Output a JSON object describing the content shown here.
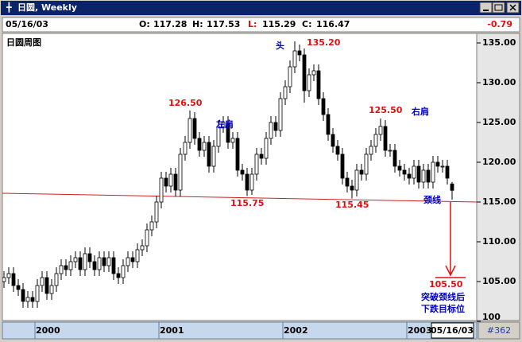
{
  "window": {
    "title": "日圆, Weekly",
    "status": "#362"
  },
  "info": {
    "date": "05/16/03",
    "fields": [
      {
        "label": "O:",
        "value": 117.28
      },
      {
        "label": "H:",
        "value": 117.53
      },
      {
        "label": "L:",
        "value": 115.29
      },
      {
        "label": "C:",
        "value": 116.47
      }
    ],
    "change": -0.79
  },
  "chart_data": {
    "type": "candlestick",
    "title": "日圆周图",
    "cursor_date": "05/16/03",
    "categories": [
      null,
      null,
      null,
      null,
      null,
      null,
      null,
      "2000",
      null,
      null,
      null,
      null,
      null,
      null,
      null,
      null,
      null,
      null,
      null,
      null,
      null,
      null,
      null,
      null,
      null,
      null,
      null,
      null,
      null,
      null,
      null,
      null,
      null,
      "2001",
      null,
      null,
      null,
      null,
      null,
      null,
      null,
      null,
      null,
      null,
      null,
      null,
      null,
      null,
      null,
      null,
      null,
      null,
      null,
      null,
      null,
      null,
      null,
      null,
      null,
      "2002",
      null,
      null,
      null,
      null,
      null,
      null,
      null,
      null,
      null,
      null,
      null,
      null,
      null,
      null,
      null,
      null,
      null,
      null,
      null,
      null,
      null,
      null,
      null,
      null,
      null,
      "2003",
      null,
      null,
      null,
      null,
      null,
      null,
      null,
      null,
      null
    ],
    "open": [
      105,
      105.5,
      106,
      104.5,
      104,
      102.5,
      103,
      102.5,
      104.5,
      105.5,
      103.5,
      104.5,
      106,
      107,
      106.5,
      107.5,
      108,
      106.5,
      108.5,
      107.5,
      106.5,
      108,
      107,
      108,
      106,
      105.5,
      107,
      108,
      107.5,
      109,
      109.5,
      111.5,
      112.5,
      115,
      118,
      117,
      118.5,
      116.5,
      121,
      122.5,
      125.5,
      123,
      121.5,
      122.5,
      119.5,
      122,
      124.5,
      125,
      122.5,
      123,
      119,
      118.5,
      116.5,
      118.5,
      121,
      120.5,
      123,
      125,
      124,
      128,
      129.5,
      132,
      134,
      133.5,
      129,
      131,
      131.5,
      128,
      126,
      123.5,
      122,
      121,
      118,
      117,
      116.5,
      119,
      118.5,
      121,
      122,
      123.5,
      124.5,
      121.5,
      121.5,
      119.5,
      119,
      118.5,
      118,
      119.5,
      117.5,
      119,
      117.5,
      120,
      119.5,
      119.5,
      117.28
    ],
    "high": [
      106.3,
      106.8,
      106.8,
      105.3,
      104.8,
      103.8,
      103.8,
      105.3,
      106.3,
      106.3,
      105.3,
      106.8,
      107.8,
      107.8,
      108.3,
      108.8,
      108.8,
      109.3,
      109.3,
      108.3,
      108.8,
      108.8,
      108.8,
      108.8,
      106.8,
      107.8,
      108.8,
      108.8,
      109.8,
      110.3,
      112.3,
      113.3,
      115.8,
      118.8,
      118.8,
      119.3,
      119.3,
      121.8,
      123.3,
      126.5,
      126.3,
      123.8,
      123.3,
      123.3,
      122.8,
      125.3,
      125.8,
      125.8,
      123.8,
      123.8,
      119.8,
      119.3,
      119.3,
      121.8,
      121.8,
      123.8,
      125.8,
      125.8,
      128.8,
      130.3,
      132.8,
      135.2,
      134.8,
      134.3,
      131.8,
      132.3,
      132.3,
      128.8,
      126.8,
      124.3,
      122.8,
      121.8,
      118.8,
      117.8,
      119.8,
      119.8,
      121.8,
      122.8,
      124.3,
      125.5,
      125.3,
      122.3,
      122.3,
      120.3,
      119.8,
      119.3,
      120.3,
      120.3,
      119.8,
      119.8,
      120.8,
      120.8,
      120.3,
      120.3,
      117.53
    ],
    "low": [
      104.2,
      104.7,
      103.7,
      103.2,
      101.7,
      101.7,
      101.7,
      101.7,
      103.7,
      102.7,
      102.7,
      103.7,
      105.2,
      105.7,
      105.7,
      106.7,
      105.7,
      105.7,
      106.7,
      105.7,
      105.7,
      106.2,
      106.2,
      105.2,
      104.7,
      104.7,
      106.2,
      106.7,
      106.7,
      108.2,
      108.7,
      110.7,
      111.7,
      114.2,
      116.2,
      116.2,
      115.7,
      115.7,
      120.2,
      121.7,
      122.2,
      120.7,
      120.7,
      118.7,
      118.7,
      121.2,
      123.7,
      121.7,
      121.7,
      118.2,
      117.7,
      115.75,
      115.9,
      117.7,
      119.7,
      119.7,
      122.2,
      123.2,
      123.2,
      127.2,
      128.7,
      131.2,
      132.7,
      127.5,
      128.2,
      130.2,
      127.2,
      125.2,
      122.7,
      121.2,
      120.2,
      117.2,
      116.2,
      115.45,
      115.7,
      117.7,
      117.7,
      120.2,
      121.2,
      122.7,
      120.7,
      120.7,
      118.7,
      118.2,
      117.7,
      117.2,
      117.2,
      116.7,
      116.7,
      116.7,
      116.7,
      118.7,
      118.7,
      117.2,
      115.29
    ],
    "close": [
      105.5,
      106,
      104.5,
      104,
      102.5,
      103,
      102.5,
      104.5,
      105.5,
      103.5,
      104.5,
      106,
      107,
      106.5,
      107.5,
      108,
      106.5,
      108.5,
      107.5,
      106.5,
      108,
      107,
      108,
      106,
      105.5,
      107,
      108,
      107.5,
      109,
      109.5,
      111.5,
      112.5,
      115,
      118,
      117,
      118.5,
      116.5,
      121,
      122.5,
      125.5,
      123,
      121.5,
      122.5,
      119.5,
      122,
      124.5,
      125,
      122.5,
      123,
      119,
      118.5,
      116.5,
      118.5,
      121,
      120.5,
      123,
      125,
      124,
      128,
      129.5,
      132,
      134,
      133.5,
      129,
      131,
      131.5,
      128,
      126,
      123.5,
      122,
      121,
      118,
      117,
      116.5,
      119,
      118.5,
      121,
      122,
      123.5,
      124.5,
      121.5,
      121.5,
      119.5,
      119,
      118.5,
      118,
      119.5,
      117.5,
      119,
      117.5,
      120,
      119.5,
      119.5,
      118,
      116.47
    ],
    "up_color": "#ffffff",
    "down_color": "#000000",
    "ylim": [
      100,
      136
    ],
    "yticks": [
      100,
      {
        "value": 105,
        "label": "105.00"
      },
      {
        "value": 110,
        "label": "110.00"
      },
      {
        "value": 115,
        "label": "115.00"
      },
      {
        "value": 120,
        "label": "120.00"
      },
      {
        "value": 125,
        "label": "125.00"
      },
      {
        "value": 130,
        "label": "130.00"
      },
      {
        "value": 135,
        "label": "135.00"
      }
    ],
    "annotations": [
      {
        "text": "126.50",
        "color": "#e01010"
      },
      {
        "text": "左肩",
        "color": "#0000c0"
      },
      {
        "text": "头",
        "color": "#0000c0"
      },
      {
        "text": "135.20",
        "color": "#e01010"
      },
      {
        "text": "125.50",
        "color": "#e01010"
      },
      {
        "text": "右肩",
        "color": "#0000c0"
      },
      {
        "text": "115.75",
        "color": "#e01010"
      },
      {
        "text": "115.45",
        "color": "#e01010"
      },
      {
        "text": "颈线",
        "color": "#0000c0"
      },
      {
        "text": "105.50",
        "color": "#e01010"
      },
      {
        "text": "突破颈线后",
        "color": "#0000c0"
      },
      {
        "text": "下跌目标位",
        "color": "#0000c0"
      }
    ]
  }
}
